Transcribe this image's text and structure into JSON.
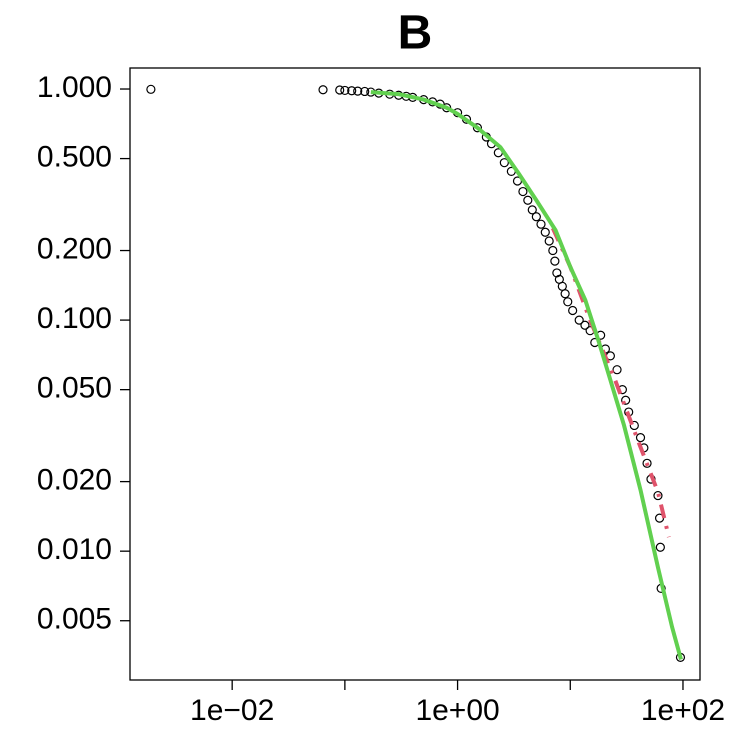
{
  "chart_data": {
    "type": "scatter",
    "title": "B",
    "xscale": "log",
    "yscale": "log",
    "xlim": [
      0.00124,
      141.6
    ],
    "ylim": [
      0.00277,
      1.233
    ],
    "xticks": [
      {
        "value": 0.01,
        "label": "1e−02"
      },
      {
        "value": 1,
        "label": "1e+00"
      },
      {
        "value": 100,
        "label": "1e+02"
      }
    ],
    "xminorticks": [
      0.1,
      10
    ],
    "yticks": [
      {
        "value": 1,
        "label": "1.000"
      },
      {
        "value": 0.5,
        "label": "0.500"
      },
      {
        "value": 0.2,
        "label": "0.200"
      },
      {
        "value": 0.1,
        "label": "0.100"
      },
      {
        "value": 0.05,
        "label": "0.050"
      },
      {
        "value": 0.02,
        "label": "0.020"
      },
      {
        "value": 0.01,
        "label": "0.010"
      },
      {
        "value": 0.005,
        "label": "0.005"
      }
    ],
    "series": [
      {
        "kind": "points",
        "color": "#000000",
        "x": [
          0.0019,
          0.064,
          0.09,
          0.1,
          0.115,
          0.13,
          0.15,
          0.17,
          0.2,
          0.25,
          0.3,
          0.35,
          0.4,
          0.5,
          0.6,
          0.7,
          0.8,
          1.0,
          1.2,
          1.5,
          1.8,
          2.0,
          2.3,
          2.6,
          3.0,
          3.4,
          3.8,
          4.2,
          4.6,
          5.0,
          5.5,
          6.0,
          6.5,
          7.0,
          7.3,
          7.6,
          8.0,
          8.5,
          9.0,
          9.5,
          10.5,
          12,
          13.5,
          15,
          16.5,
          18.6,
          20.5,
          22.7,
          26,
          29,
          31,
          33,
          37,
          42,
          45,
          48,
          52,
          60,
          62,
          63,
          64,
          95
        ],
        "values": [
          0.997,
          0.993,
          0.99,
          0.986,
          0.983,
          0.979,
          0.976,
          0.97,
          0.96,
          0.95,
          0.94,
          0.93,
          0.92,
          0.9,
          0.88,
          0.86,
          0.83,
          0.79,
          0.74,
          0.68,
          0.62,
          0.58,
          0.53,
          0.48,
          0.44,
          0.4,
          0.36,
          0.33,
          0.3,
          0.28,
          0.26,
          0.24,
          0.22,
          0.2,
          0.18,
          0.16,
          0.15,
          0.14,
          0.13,
          0.12,
          0.11,
          0.1,
          0.095,
          0.09,
          0.08,
          0.086,
          0.075,
          0.07,
          0.061,
          0.05,
          0.045,
          0.04,
          0.035,
          0.031,
          0.028,
          0.024,
          0.0205,
          0.0174,
          0.0139,
          0.0104,
          0.0069,
          0.00347
        ]
      },
      {
        "kind": "line",
        "color": "#DF536B",
        "dash": true,
        "x": [
          7,
          10,
          15,
          25,
          40,
          60,
          75
        ],
        "values": [
          0.25,
          0.17,
          0.1,
          0.055,
          0.03,
          0.018,
          0.0115
        ]
      },
      {
        "kind": "line",
        "color": "#61D04F",
        "dash": false,
        "x": [
          0.17,
          0.3,
          0.5,
          0.8,
          1,
          1.5,
          2.4,
          3.5,
          5,
          7.4,
          10,
          13.6,
          18,
          22.7,
          30,
          42,
          60,
          80,
          96
        ],
        "values": [
          0.97,
          0.95,
          0.9,
          0.83,
          0.78,
          0.68,
          0.56,
          0.43,
          0.33,
          0.245,
          0.17,
          0.122,
          0.08,
          0.055,
          0.035,
          0.0184,
          0.0085,
          0.0047,
          0.0034
        ]
      }
    ]
  }
}
